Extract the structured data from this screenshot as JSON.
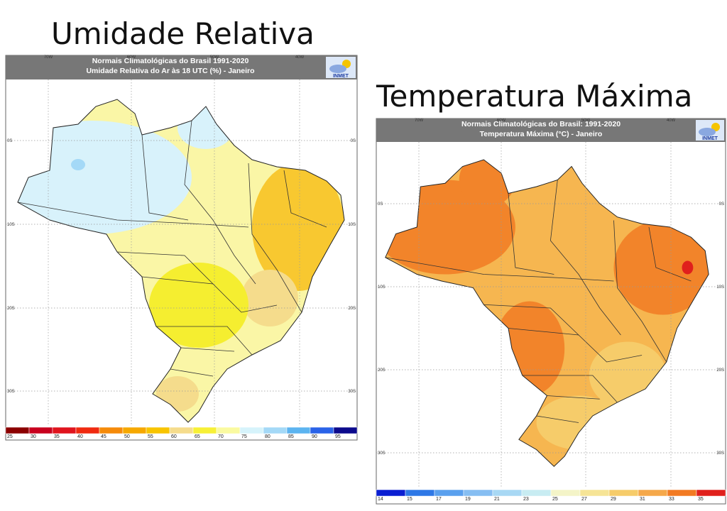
{
  "panels": [
    {
      "heading": "Umidade Relativa",
      "title": "Normais Climatológicas do Brasil 1991-2020",
      "subtitle": "Umidade Relativa do Ar às 18 UTC (%) - Janeiro",
      "logo": "INMET",
      "lon_labels": [
        "70W",
        "60W",
        "50W",
        "40W"
      ],
      "lat_labels": [
        "0S",
        "10S",
        "20S",
        "30S"
      ],
      "colorbar": {
        "labels": [
          25,
          30,
          35,
          40,
          45,
          50,
          55,
          60,
          65,
          70,
          75,
          80,
          85,
          90,
          95
        ],
        "colors": [
          "#8b0000",
          "#c8001e",
          "#e0141e",
          "#f02a10",
          "#f58a0a",
          "#f6a800",
          "#f8c400",
          "#f5dc8c",
          "#f7f036",
          "#fafaa0",
          "#d6f3fb",
          "#a4d9f7",
          "#5cb4f0",
          "#2a63e8",
          "#0c0a8c"
        ]
      }
    },
    {
      "heading": "Temperatura Máxima",
      "title": "Normais Climatológicas do Brasil: 1991-2020",
      "subtitle": "Temperatura Máxima (°C) - Janeiro",
      "logo": "INMET",
      "lon_labels": [
        "70W",
        "60W",
        "50W",
        "40W"
      ],
      "lat_labels": [
        "0S",
        "10S",
        "20S",
        "30S"
      ],
      "colorbar": {
        "labels": [
          14,
          15,
          17,
          19,
          21,
          23,
          25,
          27,
          29,
          31,
          33,
          35
        ],
        "colors": [
          "#0a1ed2",
          "#2e78e6",
          "#5aa0ee",
          "#86bef2",
          "#a8d8f4",
          "#c8ecf2",
          "#f4f4c8",
          "#f6e496",
          "#f6cc6a",
          "#f5a84a",
          "#f27a22",
          "#e0201c"
        ]
      }
    }
  ]
}
